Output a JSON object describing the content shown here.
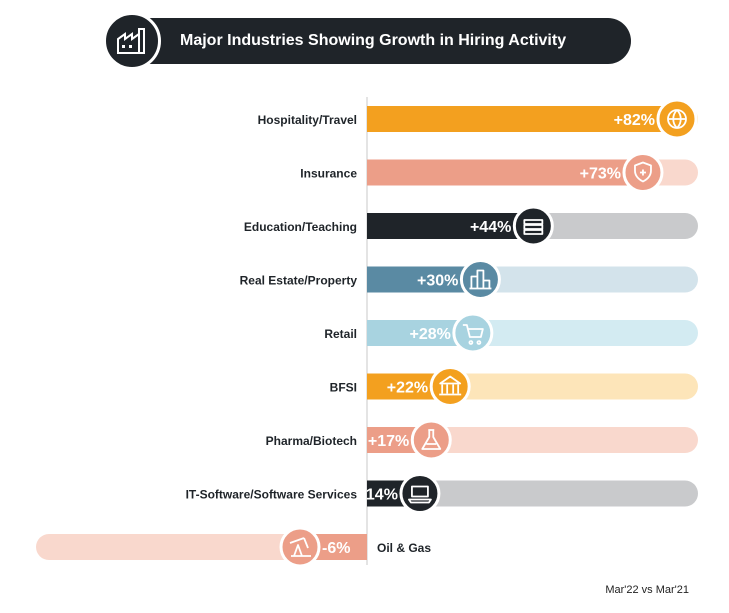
{
  "chart_data": {
    "type": "bar",
    "orientation": "horizontal",
    "title": "Major Industries Showing Growth in Hiring Activity",
    "categories": [
      "Hospitality/Travel",
      "Insurance",
      "Education/Teaching",
      "Real Estate/Property",
      "Retail",
      "BFSI",
      "Pharma/Biotech",
      "IT-Software/Software Services",
      "Oil & Gas"
    ],
    "values": [
      82,
      73,
      44,
      30,
      28,
      22,
      17,
      14,
      -6
    ],
    "value_labels": [
      "+82%",
      "+73%",
      "+44%",
      "+30%",
      "+28%",
      "+22%",
      "+17%",
      "+14%",
      "-6%"
    ],
    "xlim": [
      -6,
      82
    ],
    "colors": [
      "#f3a01f",
      "#ec9e88",
      "#1f2429",
      "#5a8aa3",
      "#a8d3e0",
      "#f3a01f",
      "#ec9e88",
      "#1f2429",
      "#ec9e88"
    ],
    "track_colors": [
      "#fde5b9",
      "#f9d8cd",
      "#c9cacc",
      "#d3e3eb",
      "#d3ebf2",
      "#fde5b9",
      "#f9d8cd",
      "#c9cacc",
      "#f9d8cd"
    ],
    "icons": [
      "globe-plane-icon",
      "shield-heart-icon",
      "books-icon",
      "buildings-icon",
      "cart-icon",
      "bank-icon",
      "flask-icon",
      "laptop-icon",
      "oil-pump-icon"
    ]
  },
  "footnote": "Mar'22 vs Mar'21",
  "title_icon": "factory-icon"
}
